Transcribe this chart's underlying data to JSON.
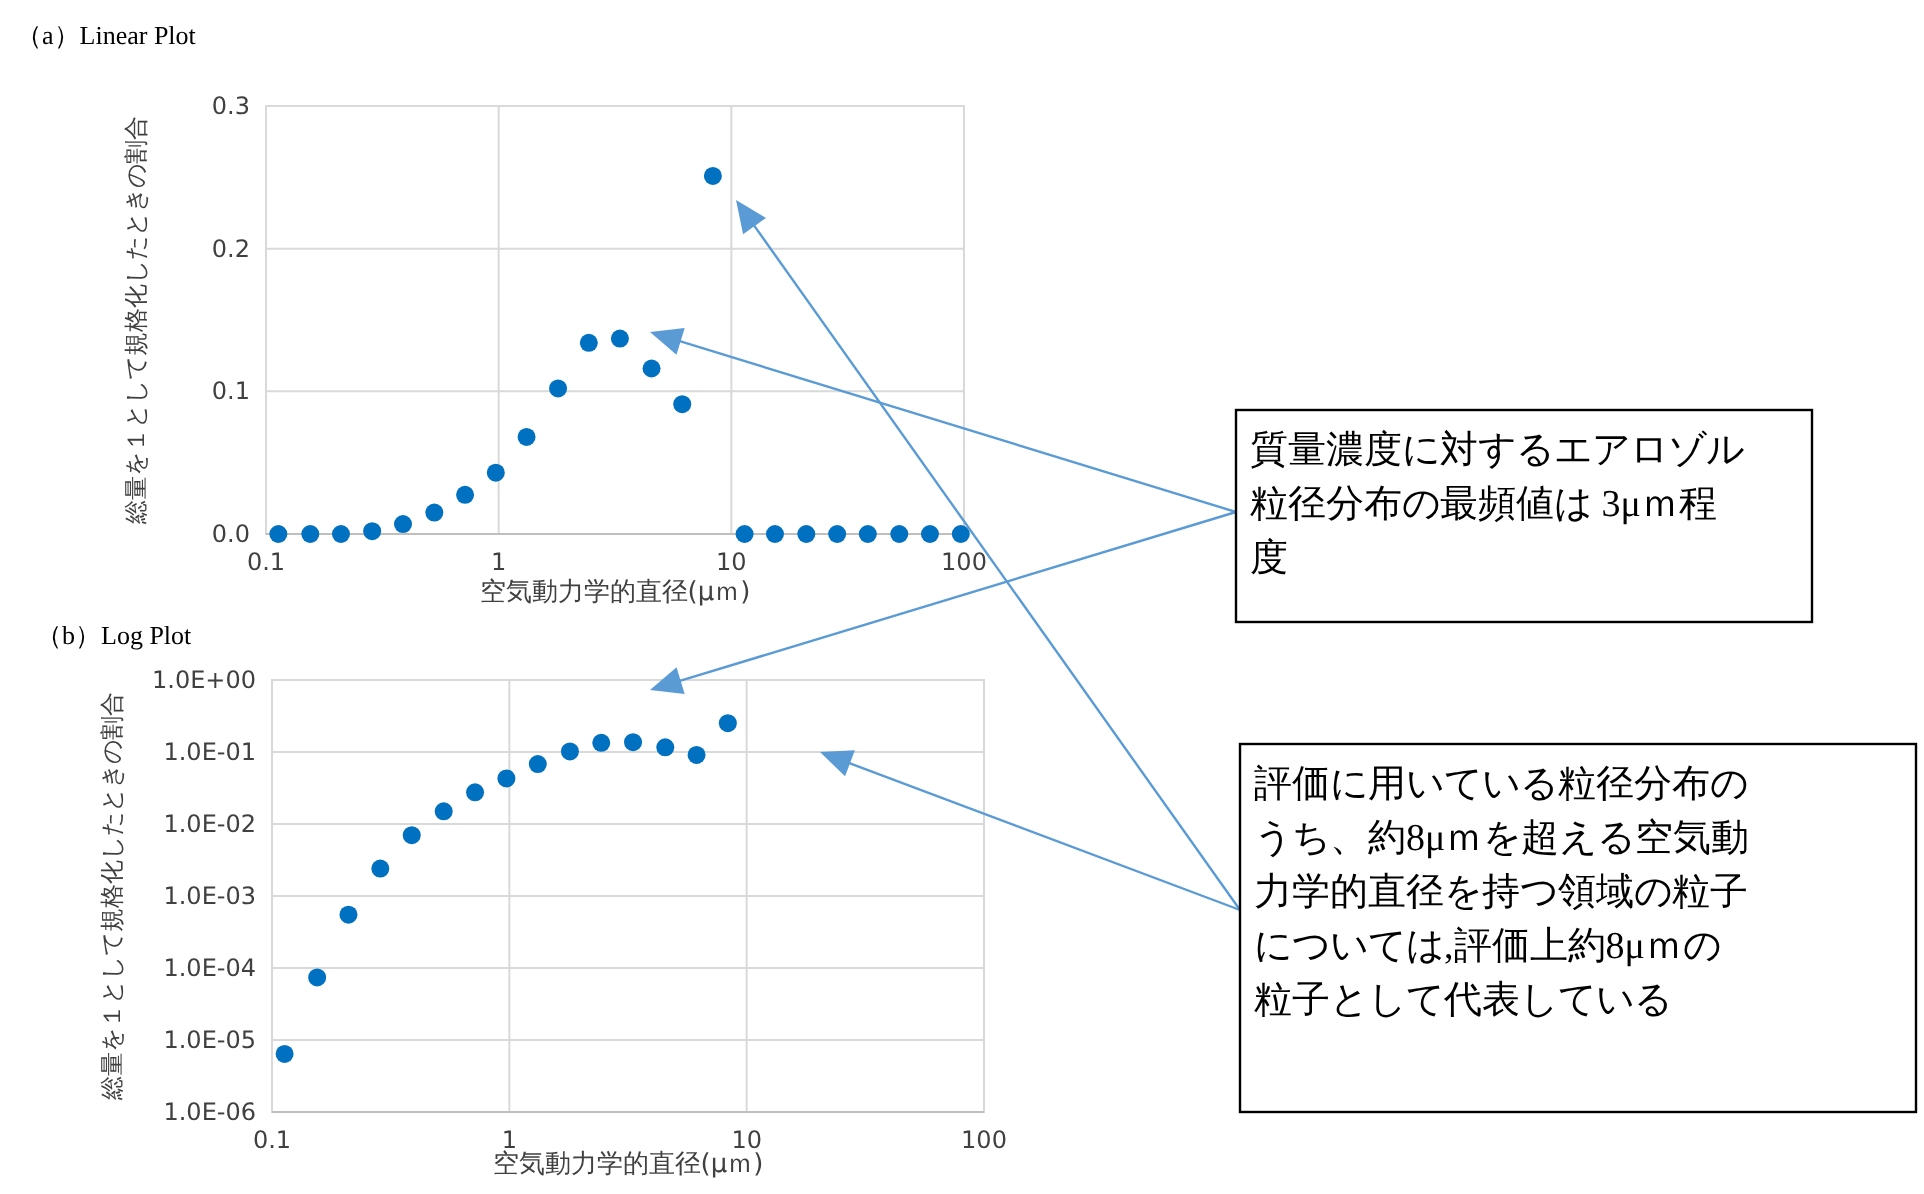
{
  "chart_data": [
    {
      "type": "scatter",
      "title": "（a）Linear Plot",
      "xlabel": "空気動力学的直径(μｍ)",
      "ylabel": "総量を１として規格化したときの割合",
      "x": [
        0.113,
        0.155,
        0.21,
        0.286,
        0.388,
        0.529,
        0.717,
        0.972,
        1.318,
        1.8,
        2.44,
        3.32,
        4.54,
        6.15,
        8.33,
        11.4,
        15.4,
        21.0,
        28.5,
        38.6,
        52.7,
        71.4,
        96.9
      ],
      "values": [
        0,
        0,
        0,
        0.002,
        0.007,
        0.015,
        0.0275,
        0.043,
        0.068,
        0.102,
        0.134,
        0.137,
        0.116,
        0.091,
        0.251,
        0,
        0,
        0,
        0,
        0,
        0,
        0,
        0
      ],
      "color": "#0070c0",
      "marker": "circle",
      "log": "x",
      "grid": true,
      "xlim": [
        0.1,
        100
      ],
      "xticks": [
        0.1,
        1,
        10,
        100
      ],
      "ylim": [
        0,
        0.3
      ],
      "yticks": [
        {
          "value": 0,
          "label": "0.0"
        },
        0.1,
        0.2,
        0.3
      ],
      "annotations": [
        "質量濃度に対するエアロゾル粒径分布の最頻値は 3μｍ程度",
        "評価に用いている粒径分布のうち、約8μｍを超える空気動力学的直径を持つ領域の粒子については,評価上約8μｍの粒子として代表している"
      ]
    },
    {
      "type": "scatter",
      "title": "（b）Log Plot",
      "xlabel": "空気動力学的直径(μｍ)",
      "ylabel": "総量を１として規格化したときの割合",
      "x": [
        0.113,
        0.155,
        0.21,
        0.286,
        0.388,
        0.529,
        0.717,
        0.972,
        1.318,
        1.8,
        2.44,
        3.32,
        4.54,
        6.15,
        8.33
      ],
      "values": [
        6.4e-06,
        7.4e-05,
        0.00055,
        0.0024,
        0.007,
        0.015,
        0.0275,
        0.043,
        0.068,
        0.102,
        0.134,
        0.137,
        0.116,
        0.091,
        0.251
      ],
      "color": "#0070c0",
      "marker": "circle",
      "log": "xy",
      "grid": true,
      "xlim": [
        0.1,
        100
      ],
      "xticks": [
        0.1,
        1,
        10,
        100
      ],
      "ylim": [
        1e-06,
        1
      ],
      "yticks": [
        {
          "value": 1e-06,
          "label": "1.0E-06"
        },
        {
          "value": 1e-05,
          "label": "1.0E-05"
        },
        {
          "value": 0.0001,
          "label": "1.0E-04"
        },
        {
          "value": 0.001,
          "label": "1.0E-03"
        },
        {
          "value": 0.01,
          "label": "1.0E-02"
        },
        {
          "value": 0.1,
          "label": "1.0E-01"
        },
        {
          "value": 1,
          "label": "1.0E+00"
        }
      ]
    }
  ]
}
